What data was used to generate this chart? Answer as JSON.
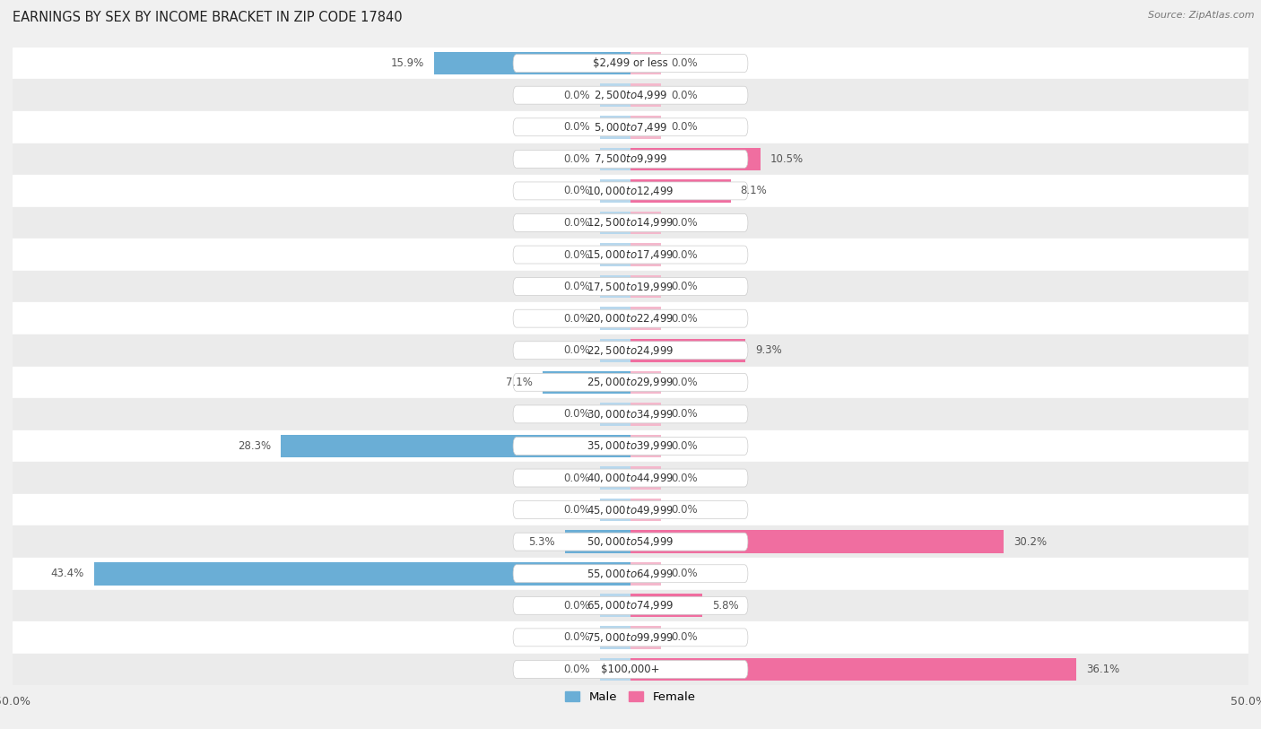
{
  "title": "EARNINGS BY SEX BY INCOME BRACKET IN ZIP CODE 17840",
  "source": "Source: ZipAtlas.com",
  "categories": [
    "$2,499 or less",
    "$2,500 to $4,999",
    "$5,000 to $7,499",
    "$7,500 to $9,999",
    "$10,000 to $12,499",
    "$12,500 to $14,999",
    "$15,000 to $17,499",
    "$17,500 to $19,999",
    "$20,000 to $22,499",
    "$22,500 to $24,999",
    "$25,000 to $29,999",
    "$30,000 to $34,999",
    "$35,000 to $39,999",
    "$40,000 to $44,999",
    "$45,000 to $49,999",
    "$50,000 to $54,999",
    "$55,000 to $64,999",
    "$65,000 to $74,999",
    "$75,000 to $99,999",
    "$100,000+"
  ],
  "male_values": [
    15.9,
    0.0,
    0.0,
    0.0,
    0.0,
    0.0,
    0.0,
    0.0,
    0.0,
    0.0,
    7.1,
    0.0,
    28.3,
    0.0,
    0.0,
    5.3,
    43.4,
    0.0,
    0.0,
    0.0
  ],
  "female_values": [
    0.0,
    0.0,
    0.0,
    10.5,
    8.1,
    0.0,
    0.0,
    0.0,
    0.0,
    9.3,
    0.0,
    0.0,
    0.0,
    0.0,
    0.0,
    30.2,
    0.0,
    5.8,
    0.0,
    36.1
  ],
  "male_color_strong": "#6aaed6",
  "male_color_light": "#b8d8ed",
  "female_color_strong": "#f06ea0",
  "female_color_light": "#f4b8cc",
  "row_bg_white": "#ffffff",
  "row_bg_gray": "#ebebeb",
  "axis_max": 50.0,
  "label_color": "#555555",
  "category_color": "#333333",
  "title_fontsize": 10.5,
  "label_fontsize": 8.5,
  "category_fontsize": 8.5,
  "source_fontsize": 8,
  "legend_male": "Male",
  "legend_female": "Female",
  "min_bar_stub": 2.5
}
